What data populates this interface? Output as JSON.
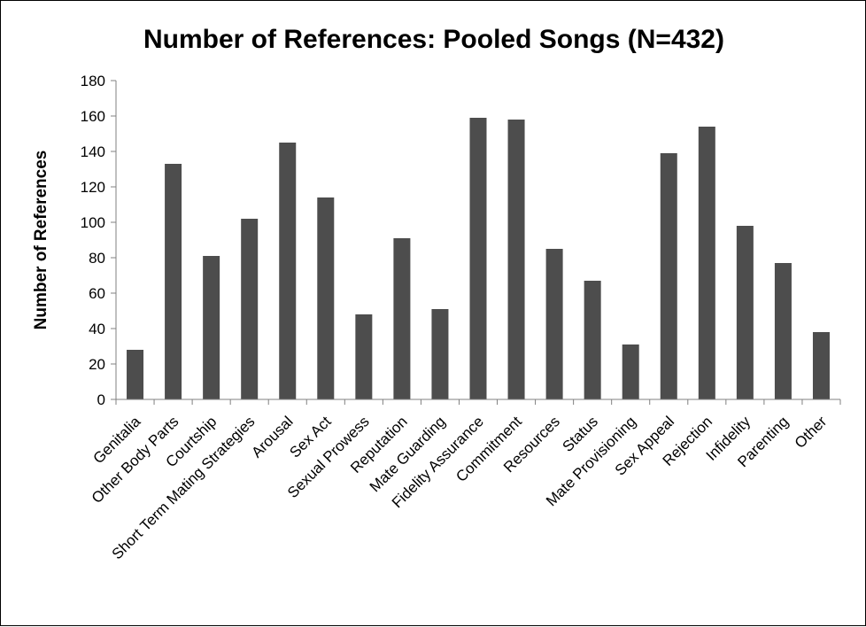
{
  "chart_data": {
    "type": "bar",
    "title": "Number of References: Pooled Songs (N=432)",
    "xlabel": "",
    "ylabel": "Number of References",
    "ylim": [
      0,
      180
    ],
    "yticks": [
      0,
      20,
      40,
      60,
      80,
      100,
      120,
      140,
      160,
      180
    ],
    "grid": false,
    "legend": "none",
    "bar_color": "#4d4d4d",
    "categories": [
      "Genitalia",
      "Other Body Parts",
      "Courtship",
      "Short Term Mating Strategies",
      "Arousal",
      "Sex Act",
      "Sexual Prowess",
      "Reputation",
      "Mate Guarding",
      "Fidelity Assurance",
      "Commitment",
      "Resources",
      "Status",
      "Mate Provisioning",
      "Sex Appeal",
      "Rejection",
      "Infidelity",
      "Parenting",
      "Other"
    ],
    "values": [
      28,
      133,
      81,
      102,
      145,
      114,
      48,
      91,
      51,
      159,
      158,
      85,
      67,
      31,
      139,
      154,
      98,
      77,
      38
    ]
  }
}
